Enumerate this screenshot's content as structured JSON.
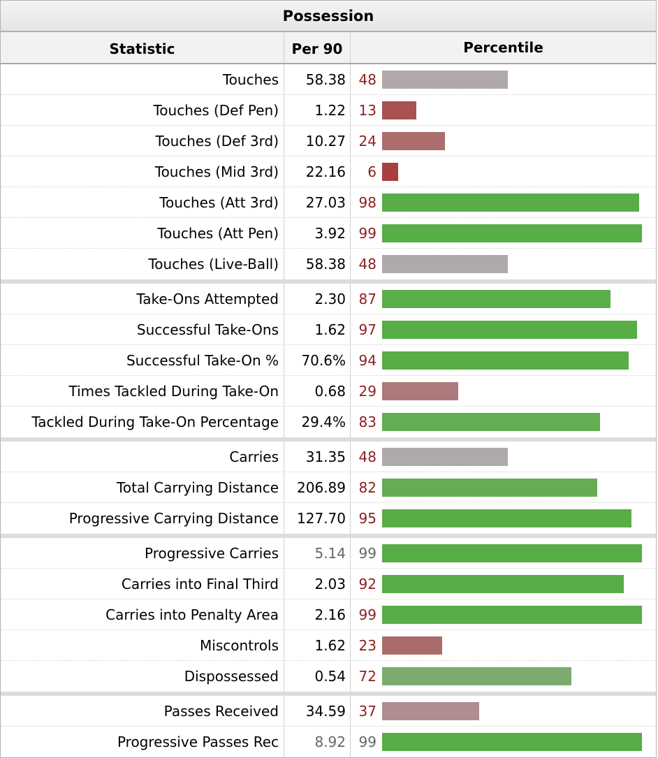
{
  "title": "Possession",
  "columns": {
    "statistic": "Statistic",
    "per90": "Per 90",
    "percentile": "Percentile"
  },
  "chart_data": {
    "type": "bar",
    "title": "Possession",
    "xlabel": "Percentile",
    "xlim": [
      0,
      100
    ],
    "groups": [
      [
        {
          "label": "Touches",
          "per90": "58.38",
          "percentile": 48
        },
        {
          "label": "Touches (Def Pen)",
          "per90": "1.22",
          "percentile": 13
        },
        {
          "label": "Touches (Def 3rd)",
          "per90": "10.27",
          "percentile": 24
        },
        {
          "label": "Touches (Mid 3rd)",
          "per90": "22.16",
          "percentile": 6
        },
        {
          "label": "Touches (Att 3rd)",
          "per90": "27.03",
          "percentile": 98
        },
        {
          "label": "Touches (Att Pen)",
          "per90": "3.92",
          "percentile": 99
        },
        {
          "label": "Touches (Live-Ball)",
          "per90": "58.38",
          "percentile": 48
        }
      ],
      [
        {
          "label": "Take-Ons Attempted",
          "per90": "2.30",
          "percentile": 87
        },
        {
          "label": "Successful Take-Ons",
          "per90": "1.62",
          "percentile": 97
        },
        {
          "label": "Successful Take-On %",
          "per90": "70.6%",
          "percentile": 94
        },
        {
          "label": "Times Tackled During Take-On",
          "per90": "0.68",
          "percentile": 29
        },
        {
          "label": "Tackled During Take-On Percentage",
          "per90": "29.4%",
          "percentile": 83
        }
      ],
      [
        {
          "label": "Carries",
          "per90": "31.35",
          "percentile": 48
        },
        {
          "label": "Total Carrying Distance",
          "per90": "206.89",
          "percentile": 82
        },
        {
          "label": "Progressive Carrying Distance",
          "per90": "127.70",
          "percentile": 95
        }
      ],
      [
        {
          "label": "Progressive Carries",
          "per90": "5.14",
          "percentile": 99,
          "muted": true
        },
        {
          "label": "Carries into Final Third",
          "per90": "2.03",
          "percentile": 92
        },
        {
          "label": "Carries into Penalty Area",
          "per90": "2.16",
          "percentile": 99
        },
        {
          "label": "Miscontrols",
          "per90": "1.62",
          "percentile": 23
        },
        {
          "label": "Dispossessed",
          "per90": "0.54",
          "percentile": 72
        }
      ],
      [
        {
          "label": "Passes Received",
          "per90": "34.59",
          "percentile": 37
        },
        {
          "label": "Progressive Passes Rec",
          "per90": "8.92",
          "percentile": 99,
          "muted": true
        }
      ]
    ]
  },
  "colors": {
    "low": "#a83e3e",
    "mid": "#b0a9a9",
    "high": "#58ad46"
  }
}
